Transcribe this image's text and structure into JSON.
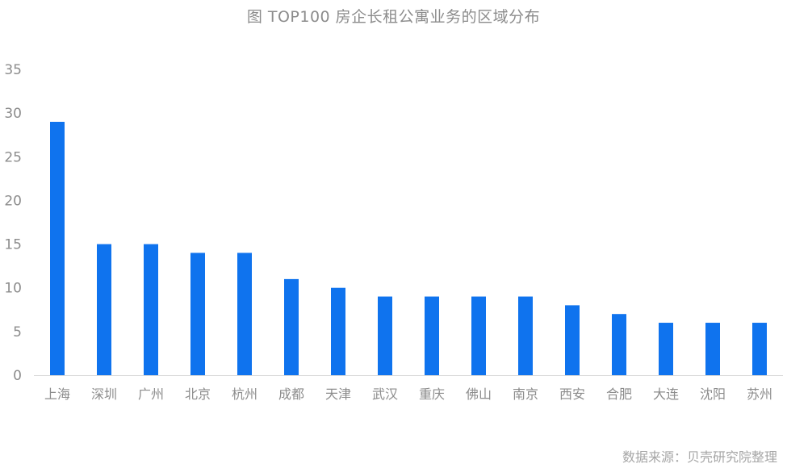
{
  "chart_data": {
    "type": "bar",
    "title": "图 TOP100 房企长租公寓业务的区域分布",
    "source": "数据来源：贝壳研究院整理",
    "xlabel": "",
    "ylabel": "",
    "ylim": [
      0,
      35
    ],
    "yticks": [
      0,
      5,
      10,
      15,
      20,
      25,
      30,
      35
    ],
    "grid": false,
    "categories": [
      "上海",
      "深圳",
      "广州",
      "北京",
      "杭州",
      "成都",
      "天津",
      "武汉",
      "重庆",
      "佛山",
      "南京",
      "西安",
      "合肥",
      "大连",
      "沈阳",
      "苏州"
    ],
    "values": [
      29,
      15,
      15,
      14,
      14,
      11,
      10,
      9,
      9,
      9,
      9,
      8,
      7,
      6,
      6,
      6
    ],
    "bar_color": "#0f73ee",
    "axis_color": "#d9d9d9",
    "text_color": "#8c8c8c"
  }
}
